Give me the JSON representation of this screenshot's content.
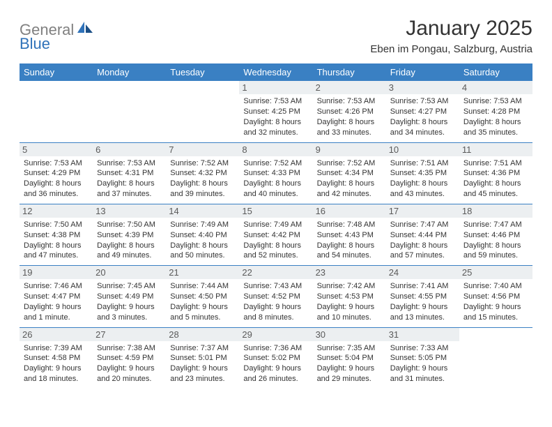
{
  "brand": {
    "word1": "General",
    "word2": "Blue"
  },
  "title": "January 2025",
  "location": "Eben im Pongau, Salzburg, Austria",
  "colors": {
    "header_bg": "#3a80c3",
    "header_text": "#ffffff",
    "daynum_bg": "#eceff1",
    "daynum_text": "#5a5a5a",
    "body_text": "#333333",
    "row_border": "#3a80c3",
    "logo_gray": "#808080",
    "logo_blue": "#2f72b9"
  },
  "weekdays": [
    "Sunday",
    "Monday",
    "Tuesday",
    "Wednesday",
    "Thursday",
    "Friday",
    "Saturday"
  ],
  "weeks": [
    [
      {
        "n": "",
        "sr": "",
        "ss": "",
        "dl": ""
      },
      {
        "n": "",
        "sr": "",
        "ss": "",
        "dl": ""
      },
      {
        "n": "",
        "sr": "",
        "ss": "",
        "dl": ""
      },
      {
        "n": "1",
        "sr": "7:53 AM",
        "ss": "4:25 PM",
        "dl": "8 hours and 32 minutes."
      },
      {
        "n": "2",
        "sr": "7:53 AM",
        "ss": "4:26 PM",
        "dl": "8 hours and 33 minutes."
      },
      {
        "n": "3",
        "sr": "7:53 AM",
        "ss": "4:27 PM",
        "dl": "8 hours and 34 minutes."
      },
      {
        "n": "4",
        "sr": "7:53 AM",
        "ss": "4:28 PM",
        "dl": "8 hours and 35 minutes."
      }
    ],
    [
      {
        "n": "5",
        "sr": "7:53 AM",
        "ss": "4:29 PM",
        "dl": "8 hours and 36 minutes."
      },
      {
        "n": "6",
        "sr": "7:53 AM",
        "ss": "4:31 PM",
        "dl": "8 hours and 37 minutes."
      },
      {
        "n": "7",
        "sr": "7:52 AM",
        "ss": "4:32 PM",
        "dl": "8 hours and 39 minutes."
      },
      {
        "n": "8",
        "sr": "7:52 AM",
        "ss": "4:33 PM",
        "dl": "8 hours and 40 minutes."
      },
      {
        "n": "9",
        "sr": "7:52 AM",
        "ss": "4:34 PM",
        "dl": "8 hours and 42 minutes."
      },
      {
        "n": "10",
        "sr": "7:51 AM",
        "ss": "4:35 PM",
        "dl": "8 hours and 43 minutes."
      },
      {
        "n": "11",
        "sr": "7:51 AM",
        "ss": "4:36 PM",
        "dl": "8 hours and 45 minutes."
      }
    ],
    [
      {
        "n": "12",
        "sr": "7:50 AM",
        "ss": "4:38 PM",
        "dl": "8 hours and 47 minutes."
      },
      {
        "n": "13",
        "sr": "7:50 AM",
        "ss": "4:39 PM",
        "dl": "8 hours and 49 minutes."
      },
      {
        "n": "14",
        "sr": "7:49 AM",
        "ss": "4:40 PM",
        "dl": "8 hours and 50 minutes."
      },
      {
        "n": "15",
        "sr": "7:49 AM",
        "ss": "4:42 PM",
        "dl": "8 hours and 52 minutes."
      },
      {
        "n": "16",
        "sr": "7:48 AM",
        "ss": "4:43 PM",
        "dl": "8 hours and 54 minutes."
      },
      {
        "n": "17",
        "sr": "7:47 AM",
        "ss": "4:44 PM",
        "dl": "8 hours and 57 minutes."
      },
      {
        "n": "18",
        "sr": "7:47 AM",
        "ss": "4:46 PM",
        "dl": "8 hours and 59 minutes."
      }
    ],
    [
      {
        "n": "19",
        "sr": "7:46 AM",
        "ss": "4:47 PM",
        "dl": "9 hours and 1 minute."
      },
      {
        "n": "20",
        "sr": "7:45 AM",
        "ss": "4:49 PM",
        "dl": "9 hours and 3 minutes."
      },
      {
        "n": "21",
        "sr": "7:44 AM",
        "ss": "4:50 PM",
        "dl": "9 hours and 5 minutes."
      },
      {
        "n": "22",
        "sr": "7:43 AM",
        "ss": "4:52 PM",
        "dl": "9 hours and 8 minutes."
      },
      {
        "n": "23",
        "sr": "7:42 AM",
        "ss": "4:53 PM",
        "dl": "9 hours and 10 minutes."
      },
      {
        "n": "24",
        "sr": "7:41 AM",
        "ss": "4:55 PM",
        "dl": "9 hours and 13 minutes."
      },
      {
        "n": "25",
        "sr": "7:40 AM",
        "ss": "4:56 PM",
        "dl": "9 hours and 15 minutes."
      }
    ],
    [
      {
        "n": "26",
        "sr": "7:39 AM",
        "ss": "4:58 PM",
        "dl": "9 hours and 18 minutes."
      },
      {
        "n": "27",
        "sr": "7:38 AM",
        "ss": "4:59 PM",
        "dl": "9 hours and 20 minutes."
      },
      {
        "n": "28",
        "sr": "7:37 AM",
        "ss": "5:01 PM",
        "dl": "9 hours and 23 minutes."
      },
      {
        "n": "29",
        "sr": "7:36 AM",
        "ss": "5:02 PM",
        "dl": "9 hours and 26 minutes."
      },
      {
        "n": "30",
        "sr": "7:35 AM",
        "ss": "5:04 PM",
        "dl": "9 hours and 29 minutes."
      },
      {
        "n": "31",
        "sr": "7:33 AM",
        "ss": "5:05 PM",
        "dl": "9 hours and 31 minutes."
      },
      {
        "n": "",
        "sr": "",
        "ss": "",
        "dl": ""
      }
    ]
  ],
  "labels": {
    "sunrise": "Sunrise:",
    "sunset": "Sunset:",
    "daylight": "Daylight:"
  }
}
